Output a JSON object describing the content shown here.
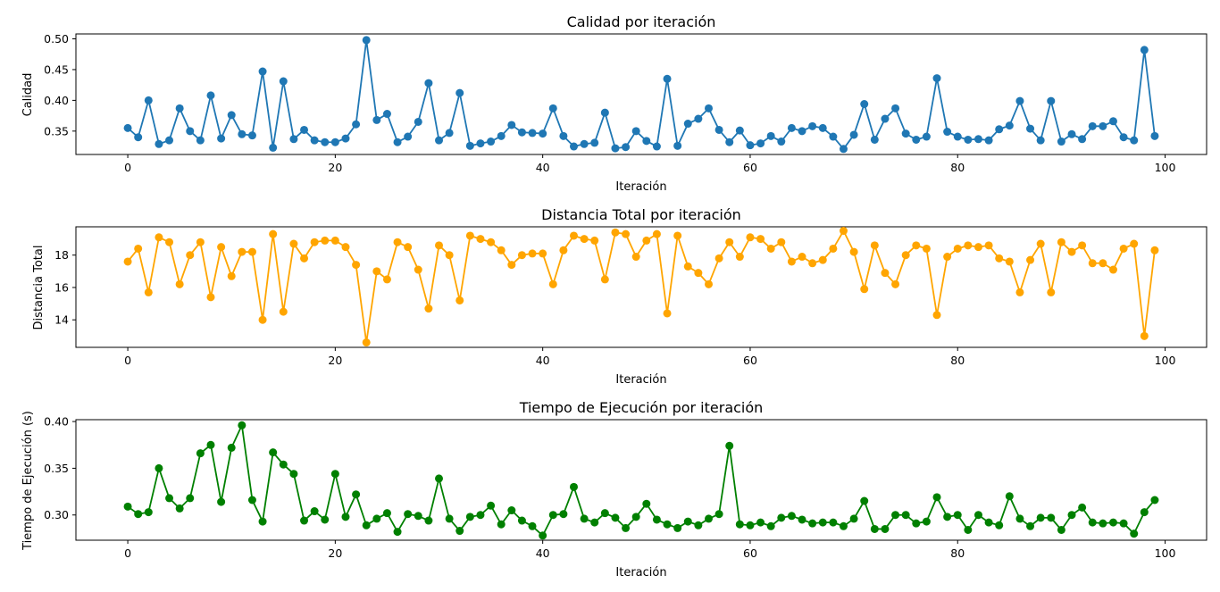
{
  "chart_data": [
    {
      "type": "line",
      "title": "Calidad por iteración",
      "xlabel": "Iteración",
      "ylabel": "Calidad",
      "color": "#1f77b4",
      "marker": "circle",
      "grid": false,
      "xlim": [
        -5,
        104
      ],
      "ylim": [
        0.312,
        0.508
      ],
      "xticks": [
        0,
        20,
        40,
        60,
        80,
        100
      ],
      "xtick_labels": [
        "0",
        "20",
        "40",
        "60",
        "80",
        "100"
      ],
      "yticks": [
        0.35,
        0.4,
        0.45,
        0.5
      ],
      "ytick_labels": [
        "0.35",
        "0.40",
        "0.45",
        "0.50"
      ],
      "series": [
        {
          "values": [
            0.355,
            0.34,
            0.4,
            0.329,
            0.335,
            0.387,
            0.35,
            0.335,
            0.408,
            0.338,
            0.376,
            0.345,
            0.343,
            0.447,
            0.323,
            0.431,
            0.337,
            0.352,
            0.335,
            0.332,
            0.332,
            0.338,
            0.361,
            0.498,
            0.368,
            0.378,
            0.332,
            0.341,
            0.365,
            0.428,
            0.335,
            0.347,
            0.412,
            0.326,
            0.33,
            0.333,
            0.342,
            0.36,
            0.348,
            0.347,
            0.346,
            0.387,
            0.342,
            0.325,
            0.329,
            0.331,
            0.38,
            0.322,
            0.324,
            0.35,
            0.334,
            0.325,
            0.435,
            0.326,
            0.362,
            0.37,
            0.387,
            0.352,
            0.332,
            0.351,
            0.327,
            0.33,
            0.342,
            0.333,
            0.355,
            0.35,
            0.358,
            0.355,
            0.341,
            0.321,
            0.344,
            0.394,
            0.336,
            0.37,
            0.387,
            0.346,
            0.336,
            0.341,
            0.436,
            0.349,
            0.341,
            0.336,
            0.337,
            0.335,
            0.353,
            0.359,
            0.399,
            0.354,
            0.335,
            0.399,
            0.333,
            0.345,
            0.337,
            0.358,
            0.358,
            0.366,
            0.34,
            0.335,
            0.482,
            0.342
          ]
        }
      ]
    },
    {
      "type": "line",
      "title": "Distancia Total por iteración",
      "xlabel": "Iteración",
      "ylabel": "Distancia Total",
      "color": "#ffa500",
      "marker": "circle",
      "grid": false,
      "xlim": [
        -5,
        104
      ],
      "ylim": [
        12.3,
        19.75
      ],
      "xticks": [
        0,
        20,
        40,
        60,
        80,
        100
      ],
      "xtick_labels": [
        "0",
        "20",
        "40",
        "60",
        "80",
        "100"
      ],
      "yticks": [
        14,
        16,
        18
      ],
      "ytick_labels": [
        "14",
        "16",
        "18"
      ],
      "series": [
        {
          "values": [
            17.6,
            18.4,
            15.7,
            19.1,
            18.8,
            16.2,
            18.0,
            18.8,
            15.4,
            18.5,
            16.7,
            18.2,
            18.2,
            14.0,
            19.3,
            14.5,
            18.7,
            17.8,
            18.8,
            18.9,
            18.9,
            18.5,
            17.4,
            12.6,
            17.0,
            16.5,
            18.8,
            18.5,
            17.1,
            14.7,
            18.6,
            18.0,
            15.2,
            19.2,
            19.0,
            18.8,
            18.3,
            17.4,
            18.0,
            18.1,
            18.1,
            16.2,
            18.3,
            19.2,
            19.0,
            18.9,
            16.5,
            19.4,
            19.3,
            17.9,
            18.9,
            19.3,
            14.4,
            19.2,
            17.3,
            16.9,
            16.2,
            17.8,
            18.8,
            17.9,
            19.1,
            19.0,
            18.4,
            18.8,
            17.6,
            17.9,
            17.5,
            17.7,
            18.4,
            19.5,
            18.2,
            15.9,
            18.6,
            16.9,
            16.2,
            18.0,
            18.6,
            18.4,
            14.3,
            17.9,
            18.4,
            18.6,
            18.5,
            18.6,
            17.8,
            17.6,
            15.7,
            17.7,
            18.7,
            15.7,
            18.8,
            18.2,
            18.6,
            17.5,
            17.5,
            17.1,
            18.4,
            18.7,
            13.0,
            18.3
          ]
        }
      ]
    },
    {
      "type": "line",
      "title": "Tiempo de Ejecución por iteración",
      "xlabel": "Iteración",
      "ylabel": "Tiempo de Ejecución (s)",
      "color": "#008000",
      "marker": "circle",
      "grid": false,
      "xlim": [
        -5,
        104
      ],
      "ylim": [
        0.273,
        0.402
      ],
      "xticks": [
        0,
        20,
        40,
        60,
        80,
        100
      ],
      "xtick_labels": [
        "0",
        "20",
        "40",
        "60",
        "80",
        "100"
      ],
      "yticks": [
        0.3,
        0.35,
        0.4
      ],
      "ytick_labels": [
        "0.30",
        "0.35",
        "0.40"
      ],
      "series": [
        {
          "values": [
            0.309,
            0.301,
            0.303,
            0.35,
            0.318,
            0.307,
            0.318,
            0.366,
            0.375,
            0.314,
            0.372,
            0.396,
            0.316,
            0.293,
            0.367,
            0.354,
            0.344,
            0.294,
            0.304,
            0.295,
            0.344,
            0.298,
            0.322,
            0.289,
            0.296,
            0.302,
            0.282,
            0.301,
            0.299,
            0.294,
            0.339,
            0.296,
            0.283,
            0.298,
            0.3,
            0.31,
            0.29,
            0.305,
            0.294,
            0.288,
            0.278,
            0.3,
            0.301,
            0.33,
            0.296,
            0.292,
            0.302,
            0.297,
            0.286,
            0.298,
            0.312,
            0.295,
            0.29,
            0.286,
            0.293,
            0.289,
            0.296,
            0.301,
            0.374,
            0.29,
            0.289,
            0.292,
            0.288,
            0.297,
            0.299,
            0.295,
            0.291,
            0.292,
            0.292,
            0.288,
            0.296,
            0.315,
            0.285,
            0.285,
            0.3,
            0.3,
            0.291,
            0.293,
            0.319,
            0.298,
            0.3,
            0.284,
            0.3,
            0.292,
            0.289,
            0.32,
            0.296,
            0.288,
            0.297,
            0.297,
            0.284,
            0.3,
            0.308,
            0.292,
            0.291,
            0.292,
            0.291,
            0.28,
            0.303,
            0.316
          ]
        }
      ]
    }
  ]
}
